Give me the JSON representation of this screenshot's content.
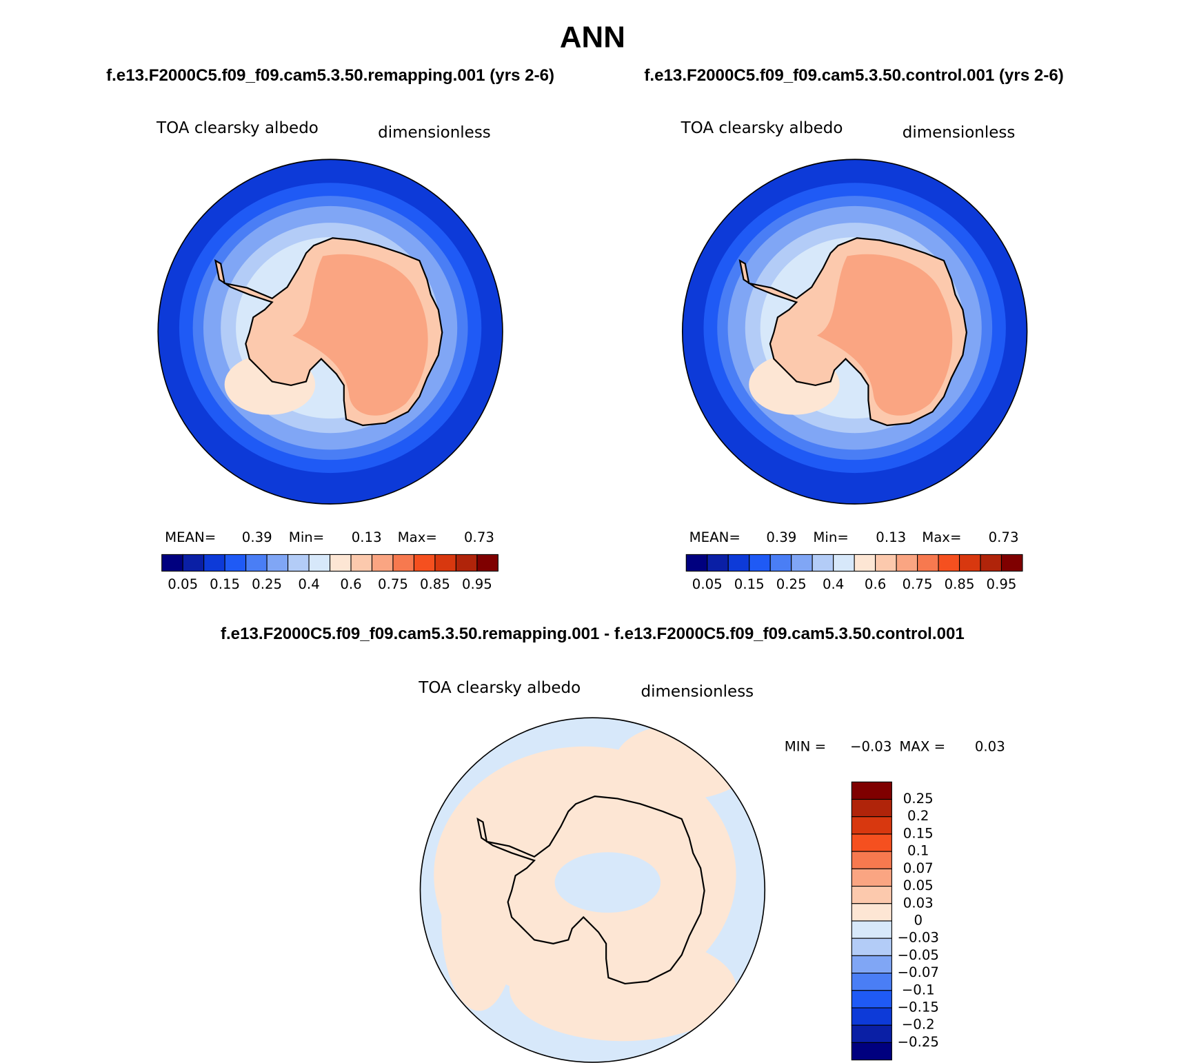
{
  "title": "ANN",
  "panels": [
    {
      "subtitle": "f.e13.F2000C5.f09_f09.cam5.3.50.remapping.001 (yrs 2-6)",
      "left_label": "TOA clearsky albedo",
      "right_label": "dimensionless",
      "stats": [
        {
          "label": "MEAN=",
          "value": 0.39
        },
        {
          "label": "Min=",
          "value": 0.13
        },
        {
          "label": "Max=",
          "value": 0.73
        }
      ]
    },
    {
      "subtitle": "f.e13.F2000C5.f09_f09.cam5.3.50.control.001 (yrs 2-6)",
      "left_label": "TOA clearsky albedo",
      "right_label": "dimensionless",
      "stats": [
        {
          "label": "MEAN=",
          "value": 0.39
        },
        {
          "label": "Min=",
          "value": 0.13
        },
        {
          "label": "Max=",
          "value": 0.73
        }
      ]
    }
  ],
  "colorbar": {
    "colors": [
      "#00007f",
      "#0a1fa5",
      "#0d3ad8",
      "#1f5af5",
      "#4a7ef5",
      "#80a6f5",
      "#b3ccf7",
      "#d7e8fa",
      "#fde6d4",
      "#fcc9ad",
      "#faa582",
      "#f7794f",
      "#f5501f",
      "#d8380f",
      "#b0240a",
      "#7f0000"
    ],
    "labels": [
      0.05,
      0.15,
      0.25,
      0.4,
      0.6,
      0.75,
      0.85,
      0.95
    ]
  },
  "difference": {
    "title": "f.e13.F2000C5.f09_f09.cam5.3.50.remapping.001 - f.e13.F2000C5.f09_f09.cam5.3.50.control.001",
    "left_label": "TOA clearsky albedo",
    "right_label": "dimensionless",
    "stats": [
      {
        "label": "MIN =",
        "value": -0.03,
        "value_label": "−0.03"
      },
      {
        "label": "MAX =",
        "value": 0.03
      }
    ],
    "colorbar": {
      "colors": [
        "#7f0000",
        "#b0240a",
        "#d8380f",
        "#f5501f",
        "#f7794f",
        "#faa582",
        "#fcc9ad",
        "#fde6d4",
        "#d7e8fa",
        "#b3ccf7",
        "#80a6f5",
        "#4a7ef5",
        "#1f5af5",
        "#0d3ad8",
        "#0a1fa5",
        "#00007f"
      ],
      "labels": [
        0.25,
        0.2,
        0.15,
        0.1,
        0.07,
        0.05,
        0.03,
        0,
        {
          "value": -0.03,
          "label": "−0.03"
        },
        {
          "value": -0.05,
          "label": "−0.05"
        },
        {
          "value": -0.07,
          "label": "−0.07"
        },
        {
          "value": -0.1,
          "label": "−0.1"
        },
        {
          "value": -0.15,
          "label": "−0.15"
        },
        {
          "value": -0.2,
          "label": "−0.2"
        },
        {
          "value": -0.25,
          "label": "−0.25"
        }
      ]
    }
  }
}
